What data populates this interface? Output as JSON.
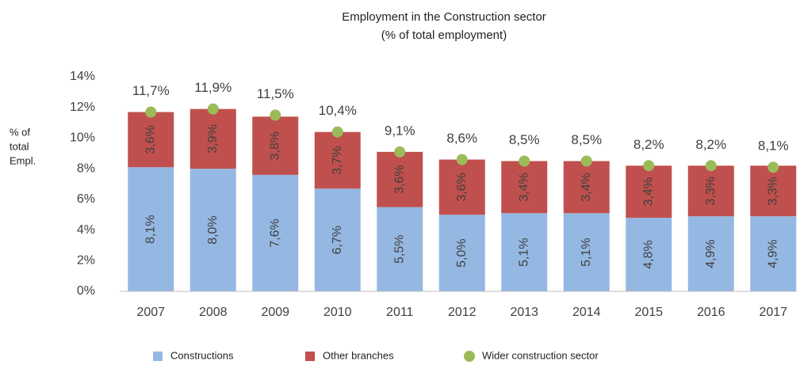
{
  "chart_data": {
    "type": "bar",
    "stacked": true,
    "title": "Employment in the Construction sector",
    "subtitle": "(% of total employment)",
    "ylabel": [
      "% of",
      "total",
      "Empl."
    ],
    "categories": [
      "2007",
      "2008",
      "2009",
      "2010",
      "2011",
      "2012",
      "2013",
      "2014",
      "2015",
      "2016",
      "2017"
    ],
    "series": [
      {
        "name": "Constructions",
        "color": "#95b8e3",
        "type": "bar",
        "values": [
          8.1,
          8.0,
          7.6,
          6.7,
          5.5,
          5.0,
          5.1,
          5.1,
          4.8,
          4.9,
          4.9
        ],
        "value_labels": [
          "8,1%",
          "8,0%",
          "7,6%",
          "6,7%",
          "5,5%",
          "5,0%",
          "5,1%",
          "5,1%",
          "4,8%",
          "4,9%",
          "4,9%"
        ]
      },
      {
        "name": "Other branches",
        "color": "#c0504d",
        "type": "bar",
        "values": [
          3.6,
          3.9,
          3.8,
          3.7,
          3.6,
          3.6,
          3.4,
          3.4,
          3.4,
          3.3,
          3.3
        ],
        "value_labels": [
          "3,6%",
          "3,9%",
          "3,8%",
          "3,7%",
          "3,6%",
          "3,6%",
          "3,4%",
          "3,4%",
          "3,4%",
          "3,3%",
          "3,3%"
        ]
      },
      {
        "name": "Wider construction sector",
        "color": "#9bbb59",
        "type": "dot",
        "values": [
          11.7,
          11.9,
          11.5,
          10.4,
          9.1,
          8.6,
          8.5,
          8.5,
          8.2,
          8.2,
          8.1
        ],
        "value_labels": [
          "11,7%",
          "11,9%",
          "11,5%",
          "10,4%",
          "9,1%",
          "8,6%",
          "8,5%",
          "8,5%",
          "8,2%",
          "8,2%",
          "8,1%"
        ]
      }
    ],
    "ylim": [
      0,
      14
    ],
    "yticks": [
      {
        "value": 0,
        "label": "0%"
      },
      {
        "value": 2,
        "label": "2%"
      },
      {
        "value": 4,
        "label": "4%"
      },
      {
        "value": 6,
        "label": "6%"
      },
      {
        "value": 8,
        "label": "8%"
      },
      {
        "value": 10,
        "label": "10%"
      },
      {
        "value": 12,
        "label": "12%"
      },
      {
        "value": 14,
        "label": "14%"
      }
    ],
    "grid": false,
    "legend": "bottom"
  }
}
